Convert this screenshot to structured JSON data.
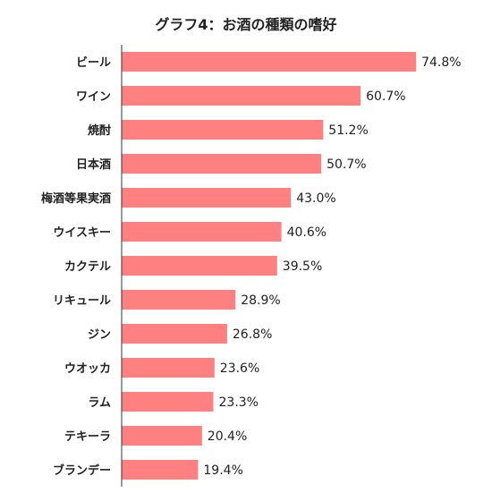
{
  "chart_data": {
    "type": "bar",
    "orientation": "horizontal",
    "title": "グラフ4：お酒の種類の嗜好",
    "xlabel": "",
    "ylabel": "",
    "xlim": [
      0,
      100
    ],
    "grid": false,
    "bar_color": "#ff8080",
    "categories": [
      "ビール",
      "ワイン",
      "焼酎",
      "日本酒",
      "梅酒等果実酒",
      "ウイスキー",
      "カクテル",
      "リキュール",
      "ジン",
      "ウオッカ",
      "ラム",
      "テキーラ",
      "ブランデー"
    ],
    "values": [
      74.8,
      60.7,
      51.2,
      50.7,
      43.0,
      40.6,
      39.5,
      28.9,
      26.8,
      23.6,
      23.3,
      20.4,
      19.4
    ],
    "value_labels": [
      "74.8%",
      "60.7%",
      "51.2%",
      "50.7%",
      "43.0%",
      "40.6%",
      "39.5%",
      "28.9%",
      "26.8%",
      "23.6%",
      "23.3%",
      "20.4%",
      "19.4%"
    ]
  }
}
